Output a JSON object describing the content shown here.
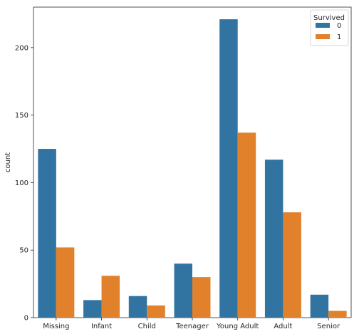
{
  "chart_data": {
    "type": "bar",
    "title": "",
    "xlabel": "",
    "ylabel": "count",
    "ylim": [
      0,
      230
    ],
    "yticks": [
      0,
      50,
      100,
      150,
      200
    ],
    "categories": [
      "Missing",
      "Infant",
      "Child",
      "Teenager",
      "Young Adult",
      "Adult",
      "Senior"
    ],
    "legend": {
      "title": "Survived",
      "position": "top-right"
    },
    "series": [
      {
        "name": "0",
        "color": "#3274a1",
        "values": [
          125,
          13,
          16,
          40,
          221,
          117,
          17
        ]
      },
      {
        "name": "1",
        "color": "#e1812c",
        "values": [
          52,
          31,
          9,
          30,
          137,
          78,
          5
        ]
      }
    ]
  }
}
